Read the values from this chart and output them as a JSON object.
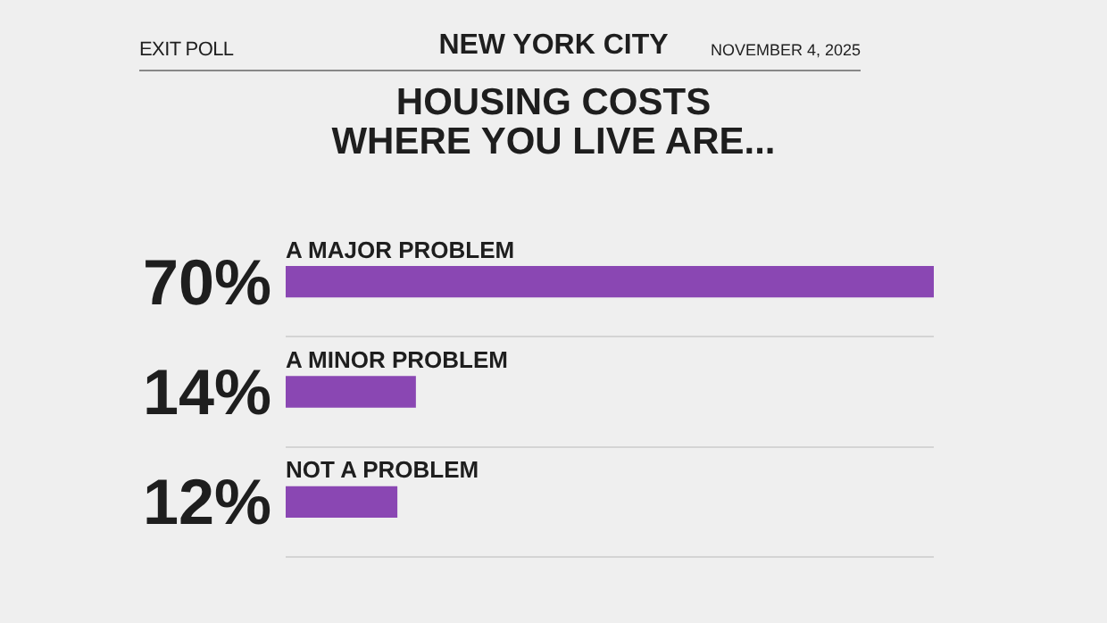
{
  "chart_data": {
    "type": "bar",
    "orientation": "horizontal",
    "title": "HOUSING COSTS WHERE YOU LIVE ARE...",
    "subtitle": "NEW YORK CITY",
    "annotations": [
      "EXIT POLL",
      "NOVEMBER 4, 2025"
    ],
    "categories": [
      "A MAJOR PROBLEM",
      "A MINOR PROBLEM",
      "NOT A PROBLEM"
    ],
    "values": [
      70,
      14,
      12
    ],
    "value_labels": [
      "70%",
      "14%",
      "12%"
    ],
    "color": "#8a47b3",
    "grid": "y"
  }
}
